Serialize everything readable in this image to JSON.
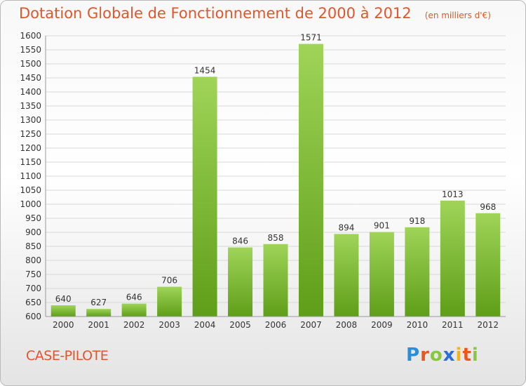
{
  "header": {
    "title": "Dotation Globale de Fonctionnement de 2000 à 2012",
    "unit": "(en milliers d'€)"
  },
  "footer": {
    "commune": "CASE-PILOTE",
    "logo": "Proxiti"
  },
  "colors": {
    "title": "#e2552a",
    "bar_light": "#9fd458",
    "bar_dark": "#5f9e18",
    "grid": "#d8d8d8"
  },
  "chart_data": {
    "type": "bar",
    "title": "Dotation Globale de Fonctionnement de 2000 à 2012",
    "subtitle": "(en milliers d'€)",
    "xlabel": "",
    "ylabel": "",
    "ylim": [
      600,
      1600
    ],
    "ytick_step": 50,
    "grid": true,
    "categories": [
      "2000",
      "2001",
      "2002",
      "2003",
      "2004",
      "2005",
      "2006",
      "2007",
      "2008",
      "2009",
      "2010",
      "2011",
      "2012"
    ],
    "values": [
      640,
      627,
      646,
      706,
      1454,
      846,
      858,
      1571,
      894,
      901,
      918,
      1013,
      968
    ]
  }
}
